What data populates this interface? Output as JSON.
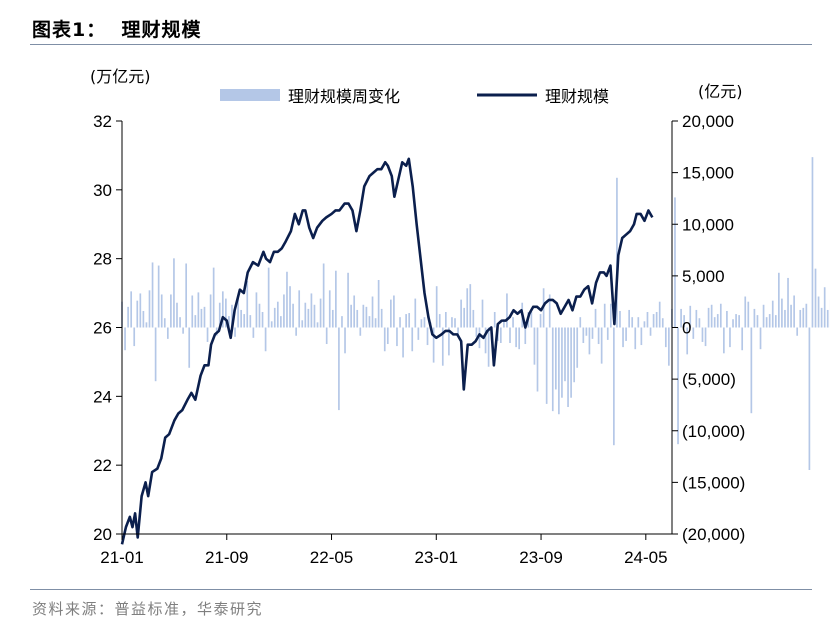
{
  "header": {
    "title": "图表1：  理财规模"
  },
  "footer": {
    "source": "资料来源：普益标准，华泰研究"
  },
  "colors": {
    "bar": "#b4c7e7",
    "line": "#0b1f4d",
    "rule": "#7f8fa6"
  },
  "chart_data": {
    "type": "bar+line",
    "left_axis": {
      "unit_label": "(万亿元)",
      "ylim": [
        20,
        32
      ],
      "ticks": [
        "20",
        "22",
        "24",
        "26",
        "28",
        "30",
        "32"
      ]
    },
    "right_axis": {
      "unit_label": "(亿元)",
      "ylim": [
        -20000,
        20000
      ],
      "ticks": [
        "(20,000)",
        "(15,000)",
        "(10,000)",
        "(5,000)",
        "0",
        "5,000",
        "10,000",
        "15,000",
        "20,000"
      ]
    },
    "x_axis": {
      "ticks": [
        "21-01",
        "21-09",
        "22-05",
        "23-01",
        "23-09",
        "24-05"
      ],
      "tick_t": [
        0,
        8,
        16,
        24,
        32,
        40
      ],
      "xlim": [
        0,
        42
      ]
    },
    "legend": {
      "bar_name": "理财规模周变化",
      "line_name": "理财规模",
      "position": "top"
    },
    "series_bar": {
      "name": "理财规模周变化",
      "axis": "right",
      "t_step": 0.2333,
      "values": [
        2500,
        -2200,
        2000,
        3500,
        -1800,
        2600,
        3300,
        1600,
        500,
        3600,
        6300,
        -5200,
        6000,
        3200,
        900,
        -1100,
        3200,
        6700,
        2400,
        1000,
        -600,
        6200,
        -3900,
        3100,
        1200,
        3400,
        1800,
        2000,
        -1400,
        3200,
        5800,
        -800,
        2400,
        3500,
        2800,
        1100,
        2200,
        -900,
        3000,
        1700,
        1300,
        4500,
        1200,
        -1000,
        3400,
        2300,
        1500,
        -2300,
        5800,
        600,
        1900,
        2500,
        1100,
        3200,
        5400,
        4000,
        2300,
        -800,
        3600,
        700,
        2400,
        1800,
        3300,
        2200,
        500,
        2800,
        6200,
        -1600,
        3600,
        1700,
        5500,
        -8000,
        1100,
        -2500,
        5300,
        2200,
        3100,
        1700,
        -800,
        2200,
        2000,
        1100,
        3000,
        900,
        4600,
        1800,
        -2300,
        -1600,
        2700,
        3100,
        -1800,
        1000,
        -2900,
        1300,
        1400,
        -2300,
        2800,
        -1200,
        800,
        1000,
        -1700,
        500,
        -3400,
        4000,
        1300,
        -3700,
        1500,
        -2700,
        1000,
        900,
        -800,
        2700,
        1900,
        3800,
        4200,
        1700,
        -900,
        -2000,
        2700,
        -2500,
        -3800,
        -1200,
        1500,
        -1300,
        -1500,
        800,
        3300,
        -1500,
        1000,
        -1900,
        -2100,
        2400,
        -1600,
        1500,
        1500,
        -3600,
        -6200,
        1300,
        3800,
        -7400,
        3200,
        -8100,
        -6000,
        -8400,
        -6800,
        -5200,
        -7700,
        -6800,
        -5300,
        -3900,
        1000,
        -1500,
        -800,
        -2600,
        -1100,
        1800,
        -1600,
        -3500,
        2300,
        -1200,
        2300,
        -11400,
        14500,
        1600,
        -1900,
        -1300,
        1700,
        1000,
        -2100,
        1000,
        -1700,
        600,
        1500,
        -800,
        1300,
        1500,
        2500,
        900,
        -1900,
        -3700,
        1800,
        12600,
        -11300,
        1800,
        1200,
        -2600,
        2100,
        -1100,
        1700,
        900,
        -1400,
        -1800,
        1900,
        2200,
        1000,
        1300,
        2300,
        -2500,
        1600,
        -1900,
        800,
        1300,
        1200,
        -2200,
        3000,
        2500,
        -8300,
        1800,
        1200,
        -2100,
        2200,
        1000,
        1300,
        2600,
        1200,
        5300,
        2800,
        1700,
        4800,
        2200,
        3100,
        -800,
        1700,
        1900,
        2300,
        -13800,
        16500,
        5700,
        3000,
        1900,
        3900,
        1700,
        2700,
        1400,
        -2100,
        3700
      ]
    },
    "series_line": {
      "name": "理财规模",
      "axis": "left",
      "points": [
        [
          0,
          19.7
        ],
        [
          0.3,
          20.2
        ],
        [
          0.6,
          20.5
        ],
        [
          0.8,
          20.2
        ],
        [
          1.0,
          20.6
        ],
        [
          1.2,
          19.9
        ],
        [
          1.5,
          21.1
        ],
        [
          1.8,
          21.5
        ],
        [
          2.0,
          21.1
        ],
        [
          2.3,
          21.8
        ],
        [
          2.7,
          21.9
        ],
        [
          3.0,
          22.2
        ],
        [
          3.3,
          22.8
        ],
        [
          3.6,
          22.9
        ],
        [
          4.0,
          23.3
        ],
        [
          4.3,
          23.5
        ],
        [
          4.6,
          23.6
        ],
        [
          5.0,
          23.9
        ],
        [
          5.3,
          24.1
        ],
        [
          5.6,
          23.9
        ],
        [
          6.0,
          24.6
        ],
        [
          6.3,
          24.9
        ],
        [
          6.6,
          24.9
        ],
        [
          6.8,
          25.5
        ],
        [
          7.1,
          25.8
        ],
        [
          7.4,
          25.9
        ],
        [
          7.7,
          26.3
        ],
        [
          8.0,
          26.2
        ],
        [
          8.3,
          25.7
        ],
        [
          8.6,
          26.5
        ],
        [
          9.0,
          27.1
        ],
        [
          9.3,
          27.0
        ],
        [
          9.6,
          27.6
        ],
        [
          10.0,
          27.9
        ],
        [
          10.4,
          27.8
        ],
        [
          10.8,
          28.2
        ],
        [
          11.0,
          28.0
        ],
        [
          11.3,
          27.9
        ],
        [
          11.6,
          28.2
        ],
        [
          11.9,
          28.2
        ],
        [
          12.2,
          28.3
        ],
        [
          12.5,
          28.5
        ],
        [
          12.9,
          28.8
        ],
        [
          13.2,
          29.3
        ],
        [
          13.5,
          29.0
        ],
        [
          13.8,
          29.4
        ],
        [
          14.0,
          29.4
        ],
        [
          14.3,
          28.9
        ],
        [
          14.6,
          28.6
        ],
        [
          14.9,
          28.9
        ],
        [
          15.3,
          29.1
        ],
        [
          15.6,
          29.2
        ],
        [
          16.0,
          29.3
        ],
        [
          16.3,
          29.4
        ],
        [
          16.6,
          29.4
        ],
        [
          17.0,
          29.6
        ],
        [
          17.3,
          29.6
        ],
        [
          17.6,
          29.4
        ],
        [
          17.9,
          28.8
        ],
        [
          18.2,
          29.4
        ],
        [
          18.5,
          30.1
        ],
        [
          18.9,
          30.4
        ],
        [
          19.2,
          30.5
        ],
        [
          19.5,
          30.6
        ],
        [
          19.8,
          30.6
        ],
        [
          20.1,
          30.8
        ],
        [
          20.3,
          30.7
        ],
        [
          20.6,
          30.4
        ],
        [
          20.8,
          29.8
        ],
        [
          21.1,
          30.3
        ],
        [
          21.4,
          30.8
        ],
        [
          21.7,
          30.7
        ],
        [
          21.9,
          30.9
        ],
        [
          22.2,
          30.1
        ],
        [
          22.5,
          29.0
        ],
        [
          22.8,
          28.0
        ],
        [
          23.1,
          27.0
        ],
        [
          23.4,
          26.3
        ],
        [
          23.7,
          25.8
        ],
        [
          24.0,
          25.7
        ],
        [
          24.4,
          25.8
        ],
        [
          24.7,
          25.9
        ],
        [
          25.0,
          25.9
        ],
        [
          25.3,
          25.8
        ],
        [
          25.6,
          25.8
        ],
        [
          25.9,
          25.6
        ],
        [
          26.1,
          24.2
        ],
        [
          26.4,
          25.5
        ],
        [
          26.7,
          25.5
        ],
        [
          27.0,
          25.6
        ],
        [
          27.3,
          25.8
        ],
        [
          27.6,
          25.7
        ],
        [
          27.9,
          25.9
        ],
        [
          28.2,
          26.0
        ],
        [
          28.4,
          24.9
        ],
        [
          28.7,
          26.1
        ],
        [
          29.0,
          26.2
        ],
        [
          29.3,
          26.2
        ],
        [
          29.6,
          26.3
        ],
        [
          29.9,
          26.5
        ],
        [
          30.2,
          26.4
        ],
        [
          30.5,
          26.5
        ],
        [
          30.8,
          26.0
        ],
        [
          31.1,
          26.4
        ],
        [
          31.4,
          26.6
        ],
        [
          31.7,
          26.6
        ],
        [
          32.0,
          26.5
        ],
        [
          32.3,
          26.7
        ],
        [
          32.6,
          26.8
        ],
        [
          32.9,
          26.8
        ],
        [
          33.2,
          26.7
        ],
        [
          33.5,
          26.4
        ],
        [
          33.8,
          26.6
        ],
        [
          34.1,
          26.8
        ],
        [
          34.4,
          26.5
        ],
        [
          34.7,
          26.9
        ],
        [
          35.0,
          26.9
        ],
        [
          35.3,
          27.1
        ],
        [
          35.6,
          27.2
        ],
        [
          35.9,
          26.7
        ],
        [
          36.2,
          27.3
        ],
        [
          36.5,
          27.6
        ],
        [
          36.8,
          27.6
        ],
        [
          37.0,
          27.5
        ],
        [
          37.3,
          27.8
        ],
        [
          37.6,
          26.1
        ],
        [
          37.9,
          28.1
        ],
        [
          38.2,
          28.6
        ],
        [
          38.5,
          28.7
        ],
        [
          38.8,
          28.8
        ],
        [
          39.1,
          29.0
        ],
        [
          39.3,
          29.3
        ],
        [
          39.6,
          29.3
        ],
        [
          39.9,
          29.1
        ],
        [
          40.2,
          29.4
        ],
        [
          40.5,
          29.2
        ]
      ]
    }
  }
}
